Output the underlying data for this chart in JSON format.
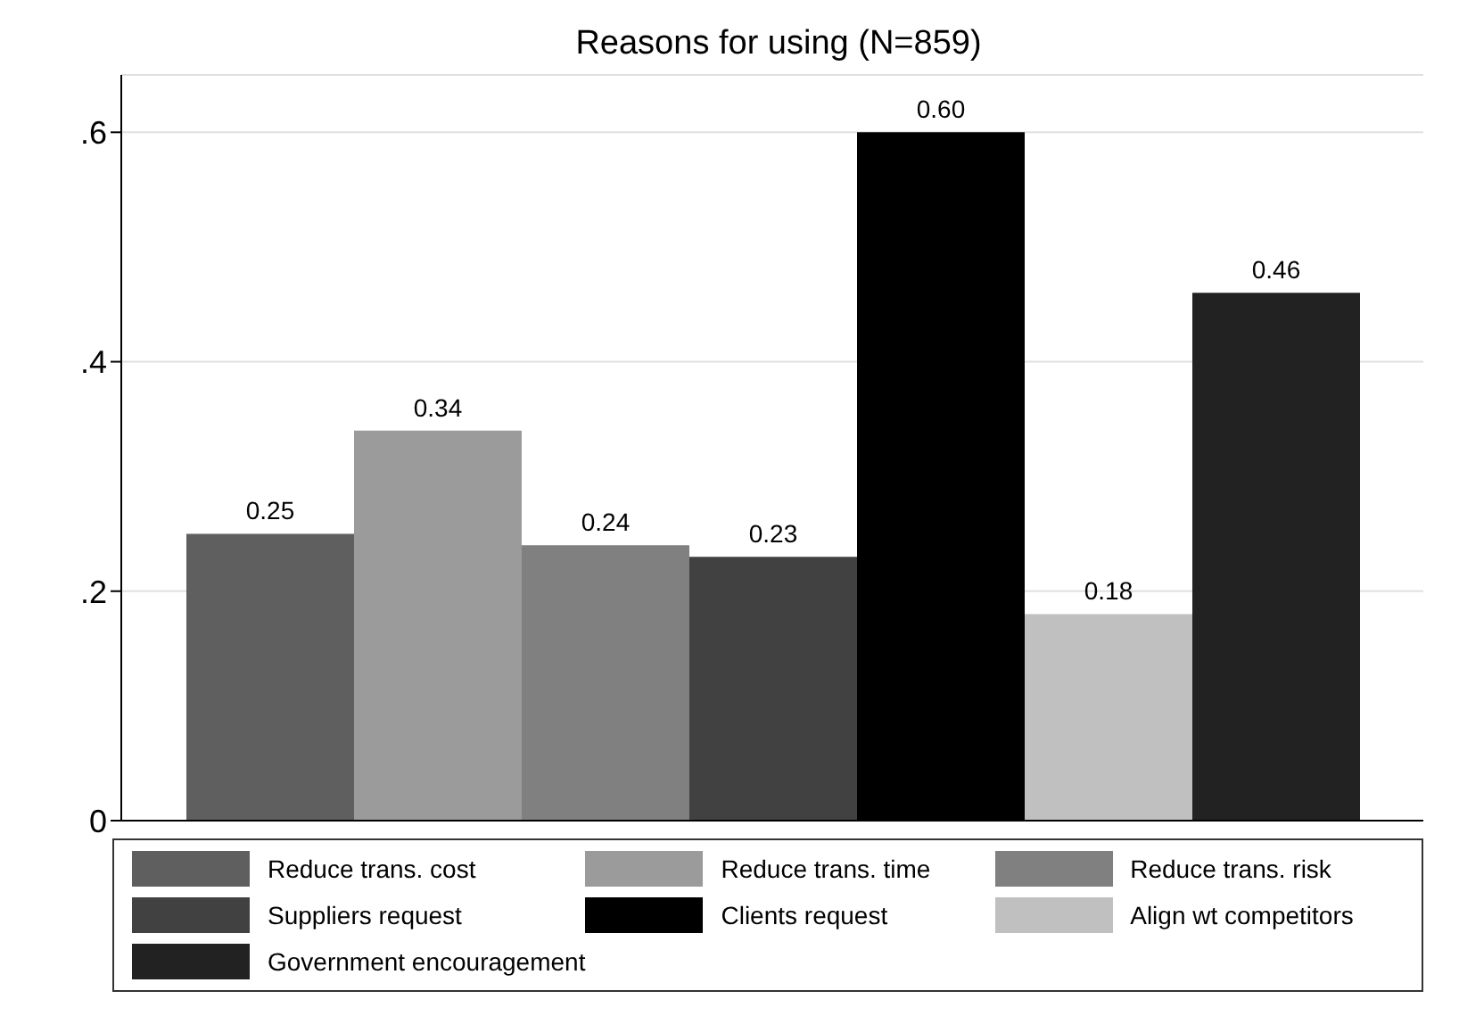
{
  "chart_data": {
    "type": "bar",
    "title": "Reasons for using (N=859)",
    "categories": [
      null
    ],
    "series": [
      {
        "name": "Reduce trans. cost",
        "color": "#5f5f5f",
        "values": [
          0.25
        ],
        "value_labels": [
          "0.25"
        ]
      },
      {
        "name": "Reduce trans. time",
        "color": "#9b9b9b",
        "values": [
          0.34
        ],
        "value_labels": [
          "0.34"
        ]
      },
      {
        "name": "Reduce trans. risk",
        "color": "#808080",
        "values": [
          0.24
        ],
        "value_labels": [
          "0.24"
        ]
      },
      {
        "name": "Suppliers request",
        "color": "#414141",
        "values": [
          0.23
        ],
        "value_labels": [
          "0.23"
        ]
      },
      {
        "name": "Clients request",
        "color": "#000000",
        "values": [
          0.6
        ],
        "value_labels": [
          "0.60"
        ]
      },
      {
        "name": "Align wt competitors",
        "color": "#c0c0c0",
        "values": [
          0.18
        ],
        "value_labels": [
          "0.18"
        ]
      },
      {
        "name": "Government encouragement",
        "color": "#222222",
        "values": [
          0.46
        ],
        "value_labels": [
          "0.46"
        ]
      }
    ],
    "ylim": [
      0,
      0.65
    ],
    "yticks": [
      {
        "value": 0,
        "label": "0"
      },
      {
        "value": 0.2,
        "label": ".2"
      },
      {
        "value": 0.4,
        "label": ".4"
      },
      {
        "value": 0.6,
        "label": ".6"
      }
    ],
    "grid": "y",
    "legend": "bottom"
  }
}
